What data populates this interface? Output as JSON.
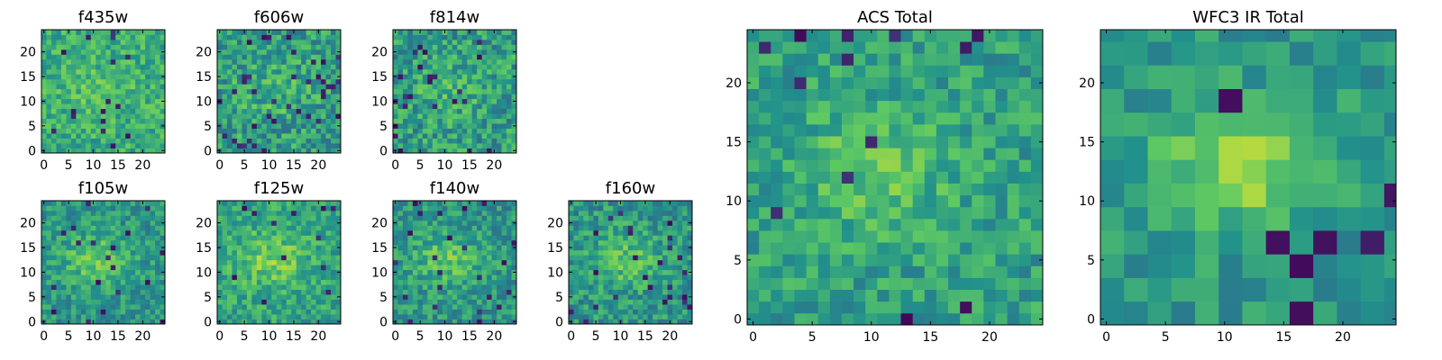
{
  "figure": {
    "colormap": "viridis",
    "colormap_stops": [
      "#440154",
      "#3b528b",
      "#21918c",
      "#5ec962",
      "#fde725"
    ]
  },
  "chart_data": [
    {
      "type": "heatmap",
      "title": "f435w",
      "grid_size": 25,
      "xlim": [
        -0.5,
        24.5
      ],
      "ylim": [
        -0.5,
        24.5
      ],
      "xticks": [
        0,
        5,
        10,
        15,
        20
      ],
      "yticks": [
        0,
        5,
        10,
        15,
        20
      ],
      "grid": false,
      "seed": 11,
      "pixel_scale": 1,
      "mean": 0.62,
      "noise": 0.16,
      "peak": 0.08,
      "dark_fraction": 0.03
    },
    {
      "type": "heatmap",
      "title": "f606w",
      "grid_size": 25,
      "xlim": [
        -0.5,
        24.5
      ],
      "ylim": [
        -0.5,
        24.5
      ],
      "xticks": [
        0,
        5,
        10,
        15,
        20
      ],
      "yticks": [
        0,
        5,
        10,
        15,
        20
      ],
      "grid": false,
      "seed": 23,
      "pixel_scale": 1,
      "mean": 0.55,
      "noise": 0.2,
      "peak": 0.1,
      "dark_fraction": 0.05
    },
    {
      "type": "heatmap",
      "title": "f814w",
      "grid_size": 25,
      "xlim": [
        -0.5,
        24.5
      ],
      "ylim": [
        -0.5,
        24.5
      ],
      "xticks": [
        0,
        5,
        10,
        15,
        20
      ],
      "yticks": [
        0,
        5,
        10,
        15,
        20
      ],
      "grid": false,
      "seed": 37,
      "pixel_scale": 1,
      "mean": 0.55,
      "noise": 0.2,
      "peak": 0.1,
      "dark_fraction": 0.04
    },
    {
      "type": "heatmap",
      "title": "f105w",
      "grid_size": 25,
      "xlim": [
        -0.5,
        24.5
      ],
      "ylim": [
        -0.5,
        24.5
      ],
      "xticks": [
        0,
        5,
        10,
        15,
        20
      ],
      "yticks": [
        0,
        5,
        10,
        15,
        20
      ],
      "grid": false,
      "seed": 41,
      "pixel_scale": 1,
      "mean": 0.52,
      "noise": 0.15,
      "peak": 0.22,
      "dark_fraction": 0.03
    },
    {
      "type": "heatmap",
      "title": "f125w",
      "grid_size": 25,
      "xlim": [
        -0.5,
        24.5
      ],
      "ylim": [
        -0.5,
        24.5
      ],
      "xticks": [
        0,
        5,
        10,
        15,
        20
      ],
      "yticks": [
        0,
        5,
        10,
        15,
        20
      ],
      "grid": false,
      "seed": 53,
      "pixel_scale": 1,
      "mean": 0.58,
      "noise": 0.16,
      "peak": 0.2,
      "dark_fraction": 0.02
    },
    {
      "type": "heatmap",
      "title": "f140w",
      "grid_size": 25,
      "xlim": [
        -0.5,
        24.5
      ],
      "ylim": [
        -0.5,
        24.5
      ],
      "xticks": [
        0,
        5,
        10,
        15,
        20
      ],
      "yticks": [
        0,
        5,
        10,
        15,
        20
      ],
      "grid": false,
      "seed": 67,
      "pixel_scale": 1,
      "mean": 0.52,
      "noise": 0.16,
      "peak": 0.2,
      "dark_fraction": 0.03
    },
    {
      "type": "heatmap",
      "title": "f160w",
      "grid_size": 25,
      "xlim": [
        -0.5,
        24.5
      ],
      "ylim": [
        -0.5,
        24.5
      ],
      "xticks": [
        0,
        5,
        10,
        15,
        20
      ],
      "yticks": [
        0,
        5,
        10,
        15,
        20
      ],
      "grid": false,
      "seed": 79,
      "pixel_scale": 1,
      "mean": 0.52,
      "noise": 0.17,
      "peak": 0.2,
      "dark_fraction": 0.04
    },
    {
      "type": "heatmap",
      "title": "ACS Total",
      "grid_size": 25,
      "xlim": [
        -0.5,
        24.5
      ],
      "ylim": [
        -0.5,
        24.5
      ],
      "xticks": [
        0,
        5,
        10,
        15,
        20
      ],
      "yticks": [
        0,
        5,
        10,
        15,
        20
      ],
      "grid": false,
      "seed": 97,
      "pixel_scale": 1,
      "mean": 0.56,
      "noise": 0.15,
      "peak": 0.16,
      "dark_fraction": 0.03
    },
    {
      "type": "heatmap",
      "title": "WFC3 IR Total",
      "grid_size": 25,
      "xlim": [
        -0.5,
        24.5
      ],
      "ylim": [
        -0.5,
        24.5
      ],
      "xticks": [
        0,
        5,
        10,
        15,
        20
      ],
      "yticks": [
        0,
        5,
        10,
        15,
        20
      ],
      "grid": false,
      "seed": 113,
      "pixel_scale": 2,
      "mean": 0.52,
      "noise": 0.12,
      "peak": 0.3,
      "dark_fraction": 0.03
    }
  ]
}
